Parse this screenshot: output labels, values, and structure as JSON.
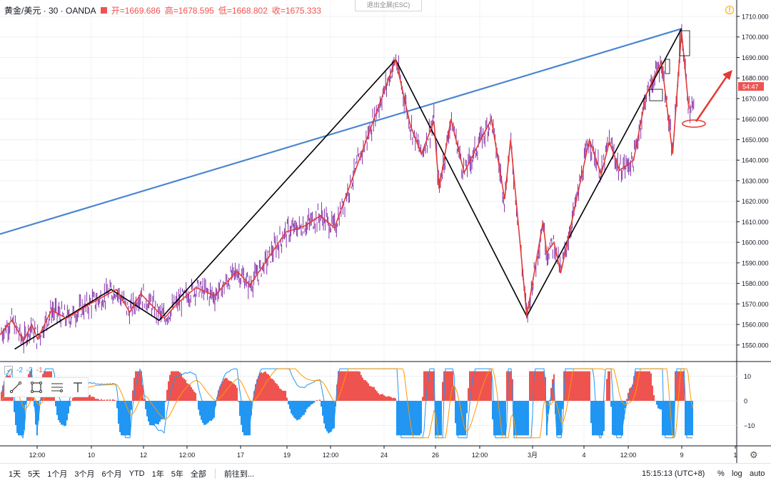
{
  "header": {
    "symbol": "黄金/美元 · 30 · OANDA",
    "open": "开=1669.686",
    "high": "高=1678.595",
    "low": "低=1668.802",
    "close": "收=1675.333"
  },
  "esc_button": "退出全屏(ESC)",
  "price_axis": {
    "ticks": [
      "1710.000",
      "1700.000",
      "1690.000",
      "1680.000",
      "1670.000",
      "1660.000",
      "1650.000",
      "1640.000",
      "1630.000",
      "1620.000",
      "1610.000",
      "1600.000",
      "1590.000",
      "1580.000",
      "1570.000",
      "1560.000",
      "1550.000"
    ],
    "current_price_label": "54:47"
  },
  "indicator": {
    "params": [
      "-2",
      "-3",
      "-1"
    ],
    "ticks": [
      "10",
      "0",
      "−10"
    ]
  },
  "time_axis": {
    "labels": [
      "12:00",
      "10",
      "12",
      "12:00",
      "17",
      "19",
      "12:00",
      "24",
      "26",
      "12:00",
      "3月",
      "4",
      "12:00",
      "9",
      "1"
    ]
  },
  "bottom_bar": {
    "ranges": [
      "1天",
      "5天",
      "1个月",
      "3个月",
      "6个月",
      "YTD",
      "1年",
      "5年",
      "全部"
    ],
    "goto": "前往到...",
    "time": "15:15:13 (UTC+8)",
    "percent": "%",
    "log": "log",
    "auto": "auto"
  },
  "icons": {
    "warning": "warning-icon",
    "settings": "gear-icon",
    "tools": [
      "trend-line-icon",
      "rectangle-icon",
      "fib-lines-icon",
      "text-icon"
    ]
  },
  "colors": {
    "candle": "#7a1fa2",
    "zigzag_red": "#e53935",
    "zigzag_black": "#000000",
    "trendline": "#4a86d0",
    "macd_hist_up": "#ef5350",
    "macd_hist_down": "#2196f3",
    "price_label_bg": "#ef5350"
  },
  "chart_data": {
    "type": "line",
    "price_range": [
      1544,
      1714
    ],
    "black_zigzag": [
      {
        "t": 0.02,
        "p": 1548
      },
      {
        "t": 0.151,
        "p": 1577
      },
      {
        "t": 0.216,
        "p": 1562
      },
      {
        "t": 0.537,
        "p": 1689
      },
      {
        "t": 0.715,
        "p": 1564
      },
      {
        "t": 0.925,
        "p": 1704
      }
    ],
    "red_zigzag": [
      {
        "t": 0.0,
        "p": 1555
      },
      {
        "t": 0.016,
        "p": 1562
      },
      {
        "t": 0.032,
        "p": 1552
      },
      {
        "t": 0.043,
        "p": 1560
      },
      {
        "t": 0.051,
        "p": 1553
      },
      {
        "t": 0.07,
        "p": 1567
      },
      {
        "t": 0.09,
        "p": 1563
      },
      {
        "t": 0.122,
        "p": 1570
      },
      {
        "t": 0.158,
        "p": 1577
      },
      {
        "t": 0.176,
        "p": 1566
      },
      {
        "t": 0.191,
        "p": 1575
      },
      {
        "t": 0.223,
        "p": 1563
      },
      {
        "t": 0.24,
        "p": 1570
      },
      {
        "t": 0.266,
        "p": 1578
      },
      {
        "t": 0.291,
        "p": 1574
      },
      {
        "t": 0.322,
        "p": 1586
      },
      {
        "t": 0.339,
        "p": 1579
      },
      {
        "t": 0.388,
        "p": 1605
      },
      {
        "t": 0.414,
        "p": 1608
      },
      {
        "t": 0.435,
        "p": 1613
      },
      {
        "t": 0.454,
        "p": 1607
      },
      {
        "t": 0.537,
        "p": 1689
      },
      {
        "t": 0.557,
        "p": 1657
      },
      {
        "t": 0.572,
        "p": 1643
      },
      {
        "t": 0.589,
        "p": 1659
      },
      {
        "t": 0.596,
        "p": 1626
      },
      {
        "t": 0.612,
        "p": 1660
      },
      {
        "t": 0.63,
        "p": 1634
      },
      {
        "t": 0.667,
        "p": 1660
      },
      {
        "t": 0.685,
        "p": 1621
      },
      {
        "t": 0.693,
        "p": 1650
      },
      {
        "t": 0.715,
        "p": 1564
      },
      {
        "t": 0.737,
        "p": 1610
      },
      {
        "t": 0.742,
        "p": 1595
      },
      {
        "t": 0.752,
        "p": 1600
      },
      {
        "t": 0.761,
        "p": 1585
      },
      {
        "t": 0.8,
        "p": 1650
      },
      {
        "t": 0.816,
        "p": 1633
      },
      {
        "t": 0.827,
        "p": 1649
      },
      {
        "t": 0.841,
        "p": 1635
      },
      {
        "t": 0.86,
        "p": 1640
      },
      {
        "t": 0.877,
        "p": 1672
      },
      {
        "t": 0.898,
        "p": 1688
      },
      {
        "t": 0.913,
        "p": 1643
      },
      {
        "t": 0.925,
        "p": 1703
      },
      {
        "t": 0.935,
        "p": 1665
      }
    ],
    "trendline": [
      {
        "t": 0.0,
        "p": 1604
      },
      {
        "t": 0.925,
        "p": 1704
      }
    ],
    "indicator_range": [
      -16,
      14
    ]
  }
}
